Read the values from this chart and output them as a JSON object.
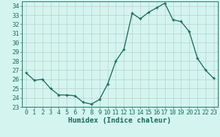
{
  "x": [
    0,
    1,
    2,
    3,
    4,
    5,
    6,
    7,
    8,
    9,
    10,
    11,
    12,
    13,
    14,
    15,
    16,
    17,
    18,
    19,
    20,
    21,
    22,
    23
  ],
  "y": [
    26.7,
    25.9,
    26.0,
    25.0,
    24.3,
    24.3,
    24.2,
    23.5,
    23.3,
    23.8,
    25.5,
    28.0,
    29.3,
    33.2,
    32.6,
    33.3,
    33.8,
    34.3,
    32.5,
    32.3,
    31.2,
    28.3,
    27.0,
    26.1
  ],
  "xlim": [
    -0.5,
    23.5
  ],
  "ylim": [
    23,
    34.5
  ],
  "yticks": [
    23,
    24,
    25,
    26,
    27,
    28,
    29,
    30,
    31,
    32,
    33,
    34
  ],
  "xticks": [
    0,
    1,
    2,
    3,
    4,
    5,
    6,
    7,
    8,
    9,
    10,
    11,
    12,
    13,
    14,
    15,
    16,
    17,
    18,
    19,
    20,
    21,
    22,
    23
  ],
  "xlabel": "Humidex (Indice chaleur)",
  "line_color": "#1a6b5a",
  "marker": "+",
  "marker_size": 3.5,
  "bg_color": "#d4f5ef",
  "grid_color": "#b8cec9",
  "axis_color": "#2d7a68",
  "tick_label_color": "#1a6b5a",
  "xlabel_color": "#1a6b5a",
  "xlabel_fontsize": 7.5,
  "tick_fontsize": 6.5,
  "line_width": 1.0
}
